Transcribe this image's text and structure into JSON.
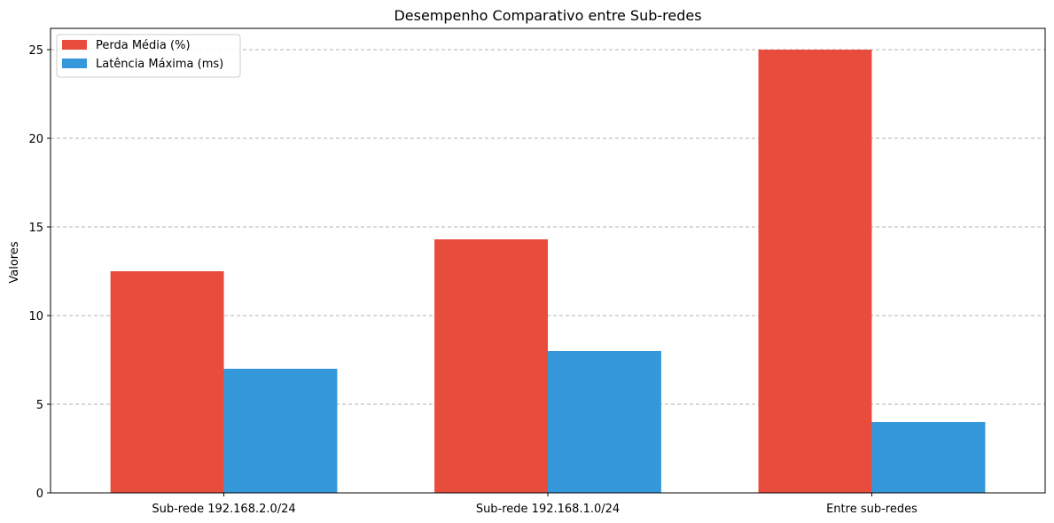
{
  "chart_data": {
    "type": "bar",
    "title": "Desempenho Comparativo entre Sub-redes",
    "xlabel": "",
    "ylabel": "Valores",
    "categories": [
      "Sub-rede 192.168.2.0/24",
      "Sub-rede 192.168.1.0/24",
      "Entre sub-redes"
    ],
    "series": [
      {
        "name": "Perda Média (%)",
        "values": [
          12.5,
          14.3,
          25.0
        ],
        "color": "#e74c3c"
      },
      {
        "name": "Latência Máxima (ms)",
        "values": [
          7.0,
          8.0,
          4.0
        ],
        "color": "#3498db"
      }
    ],
    "ylim": [
      0,
      26.2
    ],
    "yticks": [
      0,
      5,
      10,
      15,
      20,
      25
    ],
    "grid": "y-dashed",
    "legend_position": "top-left"
  }
}
